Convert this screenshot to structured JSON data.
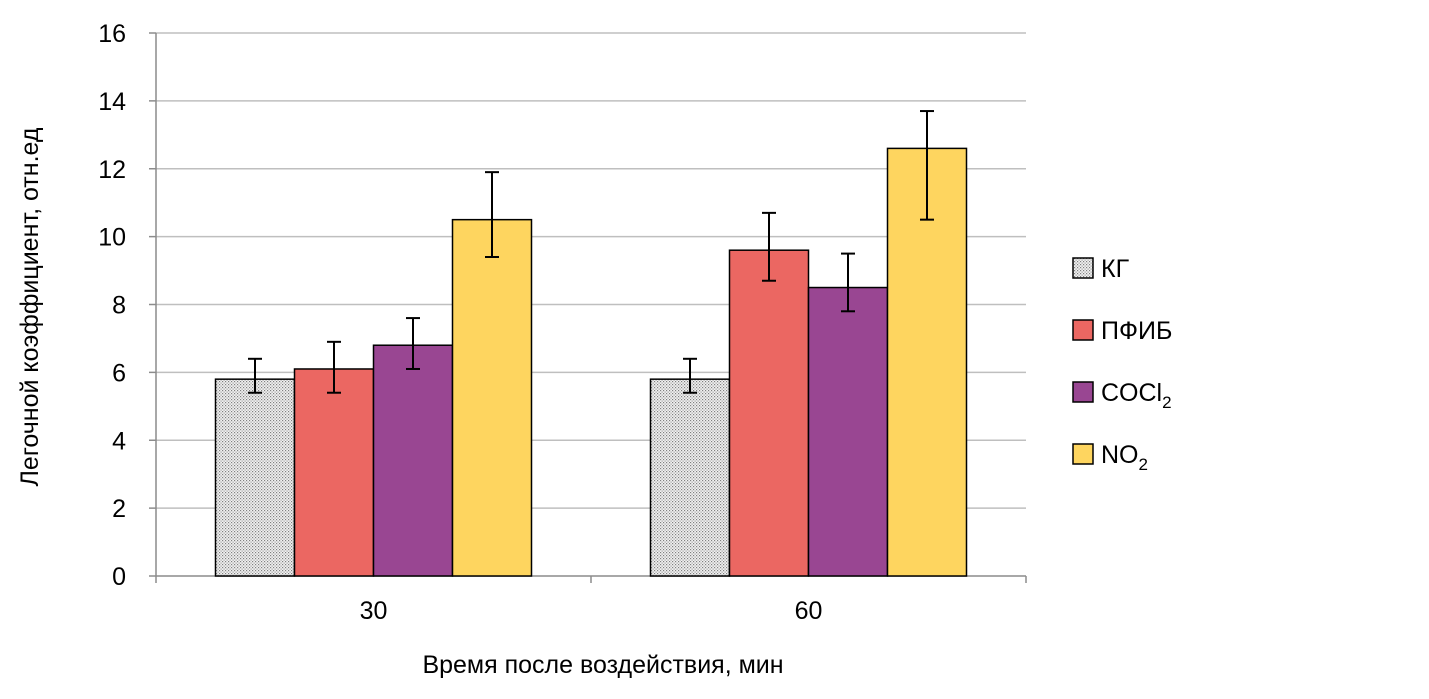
{
  "chart_data": {
    "type": "bar",
    "title": "",
    "xlabel": "Время после воздействия, мин",
    "ylabel": "Легочной коэффициент, отн.ед",
    "categories": [
      "30",
      "60"
    ],
    "ylim": [
      0,
      16
    ],
    "yticks": [
      "0",
      "2",
      "4",
      "6",
      "8",
      "10",
      "12",
      "14",
      "16"
    ],
    "grid": true,
    "legend_position": "right",
    "series": [
      {
        "name": "КГ",
        "legend_main": "КГ",
        "legend_sub": "",
        "color": "#d9d9d9",
        "pattern": "dotted",
        "values": [
          5.8,
          5.8
        ],
        "err_low": [
          5.4,
          5.4
        ],
        "err_high": [
          6.4,
          6.4
        ]
      },
      {
        "name": "ПФИБ",
        "legend_main": "ПФИБ",
        "legend_sub": "",
        "color": "#eb6762",
        "values": [
          6.1,
          9.6
        ],
        "err_low": [
          5.4,
          8.7
        ],
        "err_high": [
          6.9,
          10.7
        ]
      },
      {
        "name": "COCl2",
        "legend_main": "COCl",
        "legend_sub": "2",
        "color": "#994692",
        "values": [
          6.8,
          8.5
        ],
        "err_low": [
          6.1,
          7.8
        ],
        "err_high": [
          7.6,
          9.5
        ]
      },
      {
        "name": "NO2",
        "legend_main": "NO",
        "legend_sub": "2",
        "color": "#fed55f",
        "values": [
          10.5,
          12.6
        ],
        "err_low": [
          9.4,
          10.5
        ],
        "err_high": [
          11.9,
          13.7
        ]
      }
    ]
  }
}
